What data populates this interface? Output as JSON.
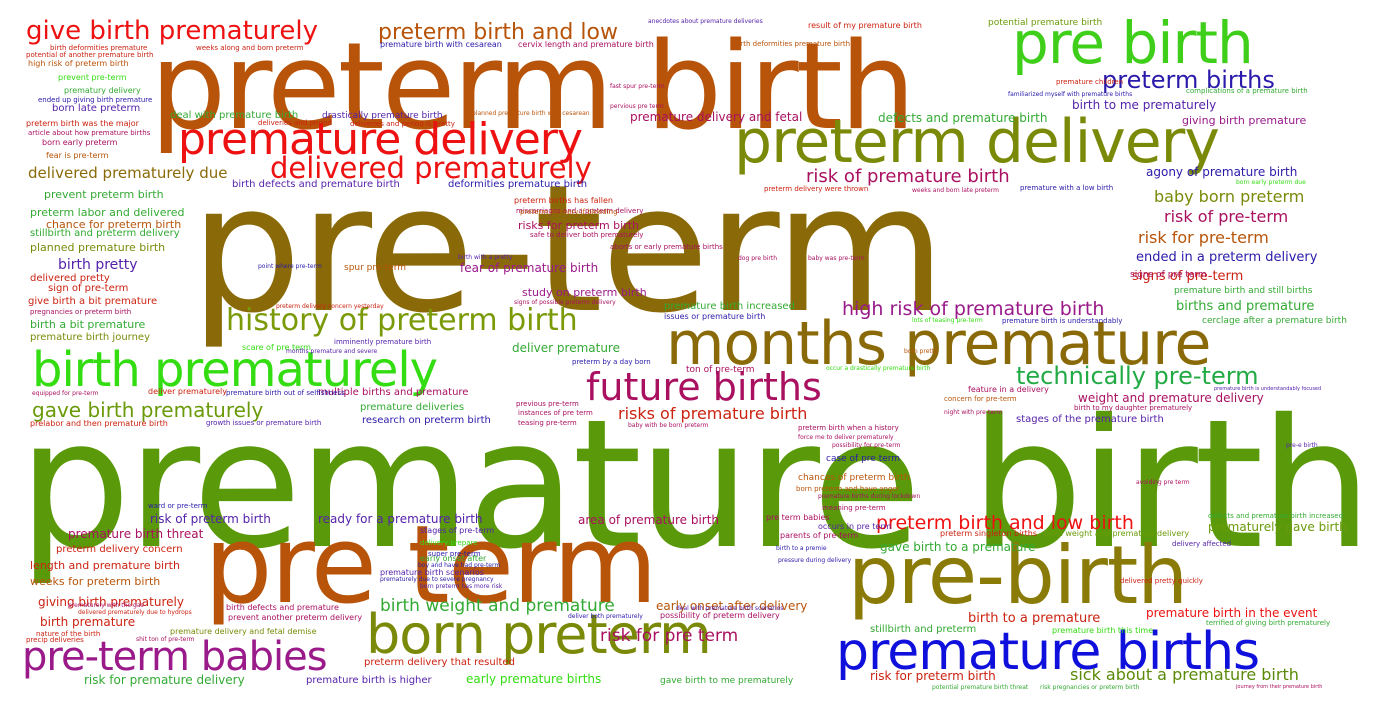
{
  "cloud": {
    "words": [
      {
        "text": "premature birth",
        "color": "#5a9a0a"
      },
      {
        "text": "pre-term",
        "color": "#8a6a08"
      },
      {
        "text": "preterm birth",
        "color": "#b8540a"
      },
      {
        "text": "pre term",
        "color": "#b8540a"
      },
      {
        "text": "pre-birth",
        "color": "#8a7a08"
      },
      {
        "text": "preterm delivery",
        "color": "#7a8a08"
      },
      {
        "text": "months premature",
        "color": "#8a6a08"
      },
      {
        "text": "pre birth",
        "color": "#3fcf1a"
      },
      {
        "text": "born preterm",
        "color": "#7a8a08"
      },
      {
        "text": "premature births",
        "color": "#1010dd"
      },
      {
        "text": "birth prematurely",
        "color": "#33dd11"
      },
      {
        "text": "premature delivery",
        "color": "#ee1111"
      },
      {
        "text": "pre-term babies",
        "color": "#9a1a8a"
      },
      {
        "text": "future births",
        "color": "#aa1060"
      },
      {
        "text": "history of preterm birth",
        "color": "#7a9a08"
      },
      {
        "text": "delivered prematurely",
        "color": "#ee1111"
      },
      {
        "text": "give birth prematurely",
        "color": "#ee1111"
      },
      {
        "text": "preterm birth and low",
        "color": "#b8540a"
      },
      {
        "text": "preterm births",
        "color": "#2a1aaa"
      },
      {
        "text": "technically pre-term",
        "color": "#22aa44"
      },
      {
        "text": "gave birth prematurely",
        "color": "#6a9a08"
      },
      {
        "text": "preterm birth and low birth",
        "color": "#ee1111"
      },
      {
        "text": "high risk of premature birth",
        "color": "#9a1a8a"
      },
      {
        "text": "risk of premature birth",
        "color": "#aa1060"
      },
      {
        "text": "risks of premature birth",
        "color": "#cc2211"
      },
      {
        "text": "birth weight and premature",
        "color": "#33aa33"
      },
      {
        "text": "risk for pre term",
        "color": "#aa1060"
      },
      {
        "text": "sick about a premature birth",
        "color": "#5a8a08"
      },
      {
        "text": "baby born preterm",
        "color": "#7a8a08"
      },
      {
        "text": "risk of pre-term",
        "color": "#aa1060"
      },
      {
        "text": "risk for pre-term",
        "color": "#b8540a"
      },
      {
        "text": "delivered prematurely due",
        "color": "#8a6a08"
      },
      {
        "text": "birth pretty",
        "color": "#5522aa"
      },
      {
        "text": "premature delivery and fetal",
        "color": "#aa1060"
      },
      {
        "text": "defects and premature birth",
        "color": "#33aa33"
      },
      {
        "text": "giving birth premature",
        "color": "#9a1a8a"
      },
      {
        "text": "birth to me prematurely",
        "color": "#5522aa"
      },
      {
        "text": "agony of premature birth",
        "color": "#2a1aaa"
      },
      {
        "text": "ended in a preterm delivery",
        "color": "#2a1aaa"
      },
      {
        "text": "signs of pre-term",
        "color": "#cc2211"
      },
      {
        "text": "births and premature",
        "color": "#33aa33"
      },
      {
        "text": "weight and premature delivery",
        "color": "#aa1060"
      },
      {
        "text": "stages of the premature birth",
        "color": "#5522aa"
      },
      {
        "text": "premature birth in the event",
        "color": "#ee1111"
      },
      {
        "text": "premature birth threat",
        "color": "#aa1060"
      },
      {
        "text": "risk of preterm birth",
        "color": "#5522aa"
      },
      {
        "text": "ready for a premature birth",
        "color": "#5522aa"
      },
      {
        "text": "area of premature birth",
        "color": "#aa1060"
      },
      {
        "text": "gave birth to a premature",
        "color": "#33aa33"
      },
      {
        "text": "birth to a premature",
        "color": "#cc2211"
      },
      {
        "text": "risk for preterm birth",
        "color": "#cc2211"
      },
      {
        "text": "early premature births",
        "color": "#33dd11"
      },
      {
        "text": "risk for premature delivery",
        "color": "#33aa33"
      },
      {
        "text": "giving birth prematurely",
        "color": "#cc2211"
      },
      {
        "text": "birth premature",
        "color": "#cc2211"
      },
      {
        "text": "prematurely gave birth",
        "color": "#6a9a08"
      },
      {
        "text": "deliver premature",
        "color": "#33aa33"
      },
      {
        "text": "study on preterm birth",
        "color": "#9a1a8a"
      },
      {
        "text": "fear of premature birth",
        "color": "#9a1a8a"
      },
      {
        "text": "risks for preterm birth",
        "color": "#aa1060"
      },
      {
        "text": "length and premature birth",
        "color": "#cc2211"
      },
      {
        "text": "weeks for preterm birth",
        "color": "#b8540a"
      },
      {
        "text": "preterm delivery concern",
        "color": "#cc2211"
      },
      {
        "text": "birth a bit premature",
        "color": "#33aa33"
      },
      {
        "text": "premature birth journey",
        "color": "#7a8a08"
      },
      {
        "text": "prevent preterm birth",
        "color": "#33aa33"
      },
      {
        "text": "preterm labor and delivered",
        "color": "#33aa33"
      },
      {
        "text": "chance for preterm birth",
        "color": "#b8540a"
      },
      {
        "text": "stillbirth and preterm delivery",
        "color": "#33aa33"
      },
      {
        "text": "planned premature birth",
        "color": "#7a8a08"
      },
      {
        "text": "delivered pretty",
        "color": "#cc2211"
      },
      {
        "text": "sign of pre-term",
        "color": "#cc2211"
      },
      {
        "text": "give birth a bit premature",
        "color": "#cc2211"
      },
      {
        "text": "born late preterm",
        "color": "#5522aa"
      },
      {
        "text": "deal with premature birth",
        "color": "#33aa33"
      },
      {
        "text": "drastically premature birth",
        "color": "#5522aa"
      },
      {
        "text": "birth defects and premature birth",
        "color": "#5522aa"
      },
      {
        "text": "deformities premature birth",
        "color": "#2a1aaa"
      },
      {
        "text": "premature birth is higher",
        "color": "#5522aa"
      },
      {
        "text": "preterm delivery that resulted",
        "color": "#cc2211"
      },
      {
        "text": "stillbirth and preterm",
        "color": "#33aa33"
      },
      {
        "text": "gave birth to me prematurely",
        "color": "#33aa33"
      },
      {
        "text": "early onset after delivery",
        "color": "#b8540a"
      },
      {
        "text": "multiple births and premature",
        "color": "#aa1060"
      },
      {
        "text": "premature deliveries",
        "color": "#33aa33"
      },
      {
        "text": "research on preterm birth",
        "color": "#2a1aaa"
      },
      {
        "text": "premature birth increased",
        "color": "#33aa33"
      },
      {
        "text": "signs of pre term",
        "color": "#aa1060"
      },
      {
        "text": "ton of pre-term",
        "color": "#aa1060"
      },
      {
        "text": "case of pre term",
        "color": "#2a1aaa"
      },
      {
        "text": "chances of preterm birth",
        "color": "#b8540a"
      },
      {
        "text": "birth weight and premature delivery",
        "color": "#6a9a08"
      },
      {
        "text": "premature birth and still births",
        "color": "#33aa33"
      },
      {
        "text": "cerclage after a premature birth",
        "color": "#33aa33"
      },
      {
        "text": "premature birth with cesarean",
        "color": "#2a1aaa"
      },
      {
        "text": "cervix length and premature birth",
        "color": "#aa1060"
      },
      {
        "text": "result of my premature birth",
        "color": "#cc2211"
      },
      {
        "text": "potential premature birth",
        "color": "#6a9a08"
      },
      {
        "text": "birth deformities premature birth",
        "color": "#b8540a"
      },
      {
        "text": "high risk of preterm birth",
        "color": "#b8540a"
      },
      {
        "text": "prevent pre-term",
        "color": "#33dd11"
      },
      {
        "text": "prematury delivery",
        "color": "#33aa33"
      },
      {
        "text": "preterm birth was the major",
        "color": "#cc2211"
      },
      {
        "text": "born early preterm",
        "color": "#aa1060"
      },
      {
        "text": "fear is pre-term",
        "color": "#b8540a"
      },
      {
        "text": "miscarriages and a preterm delivery",
        "color": "#aa1060"
      },
      {
        "text": "preterm births has fallen",
        "color": "#cc2211"
      },
      {
        "text": "preterm delivery if bleeding",
        "color": "#b8540a"
      },
      {
        "text": "spur pre-term",
        "color": "#b8540a"
      },
      {
        "text": "scare of pre term",
        "color": "#33dd11"
      },
      {
        "text": "imminently premature birth",
        "color": "#5522aa"
      },
      {
        "text": "premature children",
        "color": "#cc2211"
      },
      {
        "text": "anecdotes about premature deliveries",
        "color": "#5522aa"
      },
      {
        "text": "prelabor and then premature birth",
        "color": "#cc2211"
      },
      {
        "text": "premature birth scenarios",
        "color": "#5522aa"
      },
      {
        "text": "early onset after",
        "color": "#33aa33"
      },
      {
        "text": "parents of pre-term",
        "color": "#aa1060"
      },
      {
        "text": "pre term babies",
        "color": "#aa1060"
      },
      {
        "text": "occurs in pre term",
        "color": "#5522aa"
      },
      {
        "text": "preterm singleton births",
        "color": "#cc2211"
      },
      {
        "text": "premature birth this time",
        "color": "#33dd11"
      },
      {
        "text": "nature of the birth",
        "color": "#cc2211"
      },
      {
        "text": "precip deliveries",
        "color": "#cc2211"
      },
      {
        "text": "premature delivery and fetal demise",
        "color": "#7a8a08"
      },
      {
        "text": "possibility of preterm delivery",
        "color": "#aa1060"
      },
      {
        "text": "birth defects and premature",
        "color": "#aa1060"
      },
      {
        "text": "prevent another preterm delivery",
        "color": "#aa1060"
      },
      {
        "text": "issues or premature birth",
        "color": "#2a1aaa"
      },
      {
        "text": "stages of pre-term",
        "color": "#5522aa"
      },
      {
        "text": "super pre-term",
        "color": "#2a1aaa"
      },
      {
        "text": "delivery prepare",
        "color": "#33dd11"
      },
      {
        "text": "teasing pre-term",
        "color": "#aa1060"
      },
      {
        "text": "previous pre-term",
        "color": "#aa1060"
      },
      {
        "text": "instances of pre term",
        "color": "#aa1060"
      },
      {
        "text": "preterm birth when a history",
        "color": "#aa1060"
      },
      {
        "text": "born preterm and have anger",
        "color": "#b8540a"
      },
      {
        "text": "concern for pre-term",
        "color": "#b8540a"
      },
      {
        "text": "birth to my daughter prematurely",
        "color": "#aa1060"
      },
      {
        "text": "delivered pretty quickly",
        "color": "#cc2211"
      },
      {
        "text": "terrified of giving birth prematurely",
        "color": "#33aa33"
      },
      {
        "text": "ward or pre-term",
        "color": "#2a1aaa"
      },
      {
        "text": "preterm by a day born",
        "color": "#2a1aaa"
      },
      {
        "text": "growth issues or premature birth",
        "color": "#5522aa"
      },
      {
        "text": "meaning pre-term",
        "color": "#aa1060"
      },
      {
        "text": "avoiding pre term",
        "color": "#aa1060"
      },
      {
        "text": "pre-e birth",
        "color": "#5522aa"
      },
      {
        "text": "born pretty",
        "color": "#b8540a"
      },
      {
        "text": "signs of possible preterm delivery",
        "color": "#aa1060"
      },
      {
        "text": "point where pre-term",
        "color": "#2a1aaa"
      },
      {
        "text": "dog pre birth",
        "color": "#aa1060"
      },
      {
        "text": "baby was pre-term",
        "color": "#aa1060"
      },
      {
        "text": "premature with a low birth",
        "color": "#2a1aaa"
      },
      {
        "text": "preterm delivery were thrown",
        "color": "#cc2211"
      },
      {
        "text": "weeks and born late preterm",
        "color": "#aa1060"
      },
      {
        "text": "born early preterm due",
        "color": "#33dd11"
      },
      {
        "text": "premature birth is understandably",
        "color": "#2a1aaa"
      },
      {
        "text": "lots of teasing pre-term",
        "color": "#33dd11"
      },
      {
        "text": "fast spur pre-term",
        "color": "#aa1060"
      },
      {
        "text": "pervious pre term",
        "color": "#aa1060"
      },
      {
        "text": "planned premature birth with cesarean",
        "color": "#b8540a"
      },
      {
        "text": "complications of a premature birth",
        "color": "#33aa33"
      },
      {
        "text": "familiarized myself with premature births",
        "color": "#2a1aaa"
      },
      {
        "text": "ended up giving birth premature",
        "color": "#2a1aaa"
      },
      {
        "text": "article about how premature births",
        "color": "#aa1060"
      },
      {
        "text": "deliveries and period",
        "color": "#cc2211"
      },
      {
        "text": "deliveries and period is pretty",
        "color": "#cc2211"
      },
      {
        "text": "weeks along and born preterm",
        "color": "#cc2211"
      },
      {
        "text": "birth deformities premature",
        "color": "#cc2211"
      },
      {
        "text": "potential of another premature birth",
        "color": "#cc2211"
      },
      {
        "text": "equipped for pre-term",
        "color": "#aa1060"
      },
      {
        "text": "premature birth out of selfishness",
        "color": "#2a1aaa"
      },
      {
        "text": "deliver prematurely",
        "color": "#cc2211"
      },
      {
        "text": "months premature and severe",
        "color": "#5522aa"
      },
      {
        "text": "safe to deliver both prematurely",
        "color": "#aa1060"
      },
      {
        "text": "aborts or early premature births",
        "color": "#aa1060"
      },
      {
        "text": "birth with a pretty",
        "color": "#5522aa"
      },
      {
        "text": "feature in a delivery",
        "color": "#aa1060"
      },
      {
        "text": "night with pre-term",
        "color": "#aa1060"
      },
      {
        "text": "delivery affected",
        "color": "#5522aa"
      },
      {
        "text": "defects and premature birth increased",
        "color": "#33aa33"
      },
      {
        "text": "premature birth is understandably focused",
        "color": "#5522aa"
      },
      {
        "text": "occur a drastically premature birth",
        "color": "#33dd11"
      },
      {
        "text": "force me to deliver prematurely",
        "color": "#aa1060"
      },
      {
        "text": "possibility for pre-term",
        "color": "#aa1060"
      },
      {
        "text": "premature births during lockdown",
        "color": "#aa1060"
      },
      {
        "text": "birth to a premie",
        "color": "#2a1aaa"
      },
      {
        "text": "pressure during delivery",
        "color": "#2a1aaa"
      },
      {
        "text": "boy and have had pre-term",
        "color": "#2a1aaa"
      },
      {
        "text": "prematurely due to severe pregnancy",
        "color": "#2a1aaa"
      },
      {
        "text": "born preterm has more risk",
        "color": "#5522aa"
      },
      {
        "text": "deliver both prematurely",
        "color": "#2a1aaa"
      },
      {
        "text": "deal with premature birth scenarios",
        "color": "#5522aa"
      },
      {
        "text": "delivered prematurely due to hydrops",
        "color": "#cc2211"
      },
      {
        "text": "prematurely with the gas",
        "color": "#aa1060"
      },
      {
        "text": "shit ton of pre-term",
        "color": "#aa1060"
      },
      {
        "text": "baby with be born preterm",
        "color": "#aa1060"
      },
      {
        "text": "pregnancies or preterm birth",
        "color": "#aa1060"
      },
      {
        "text": "preterm delivery concern yesterday",
        "color": "#cc2211"
      },
      {
        "text": "potential premature birth threat",
        "color": "#33aa33"
      },
      {
        "text": "risk pregnancies or preterm birth",
        "color": "#33aa33"
      },
      {
        "text": "journey from their premature birth",
        "color": "#aa1060"
      }
    ]
  }
}
